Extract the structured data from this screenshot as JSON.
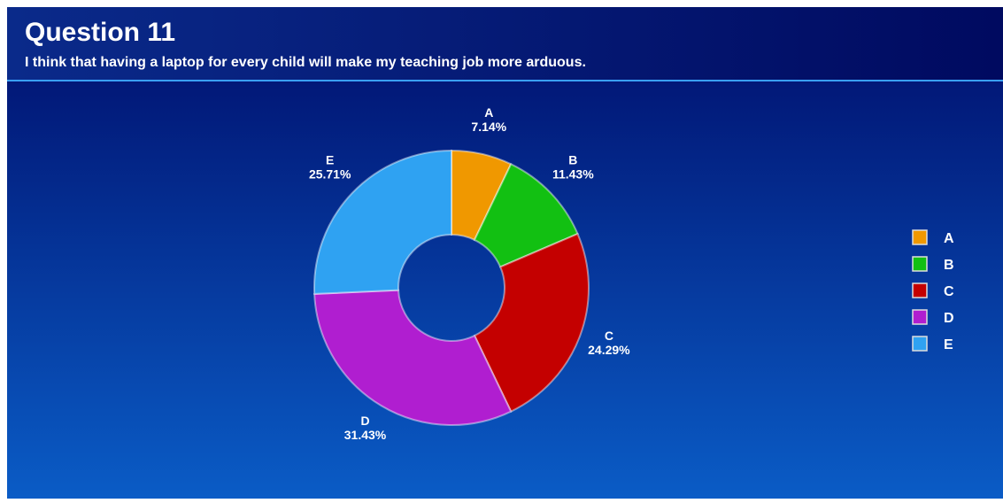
{
  "chart_data": {
    "type": "donut",
    "title": "Question 11",
    "subtitle": "I think that having a laptop for every child will make my teaching job more arduous.",
    "categories": [
      "A",
      "B",
      "C",
      "D",
      "E"
    ],
    "values": [
      7.14,
      11.43,
      24.29,
      31.43,
      25.71
    ],
    "value_labels": [
      "7.14%",
      "11.43%",
      "24.29%",
      "31.43%",
      "25.71%"
    ],
    "colors": [
      "#f09800",
      "#12c012",
      "#c40000",
      "#b01ed0",
      "#2fa2f2"
    ],
    "legend": "right"
  }
}
